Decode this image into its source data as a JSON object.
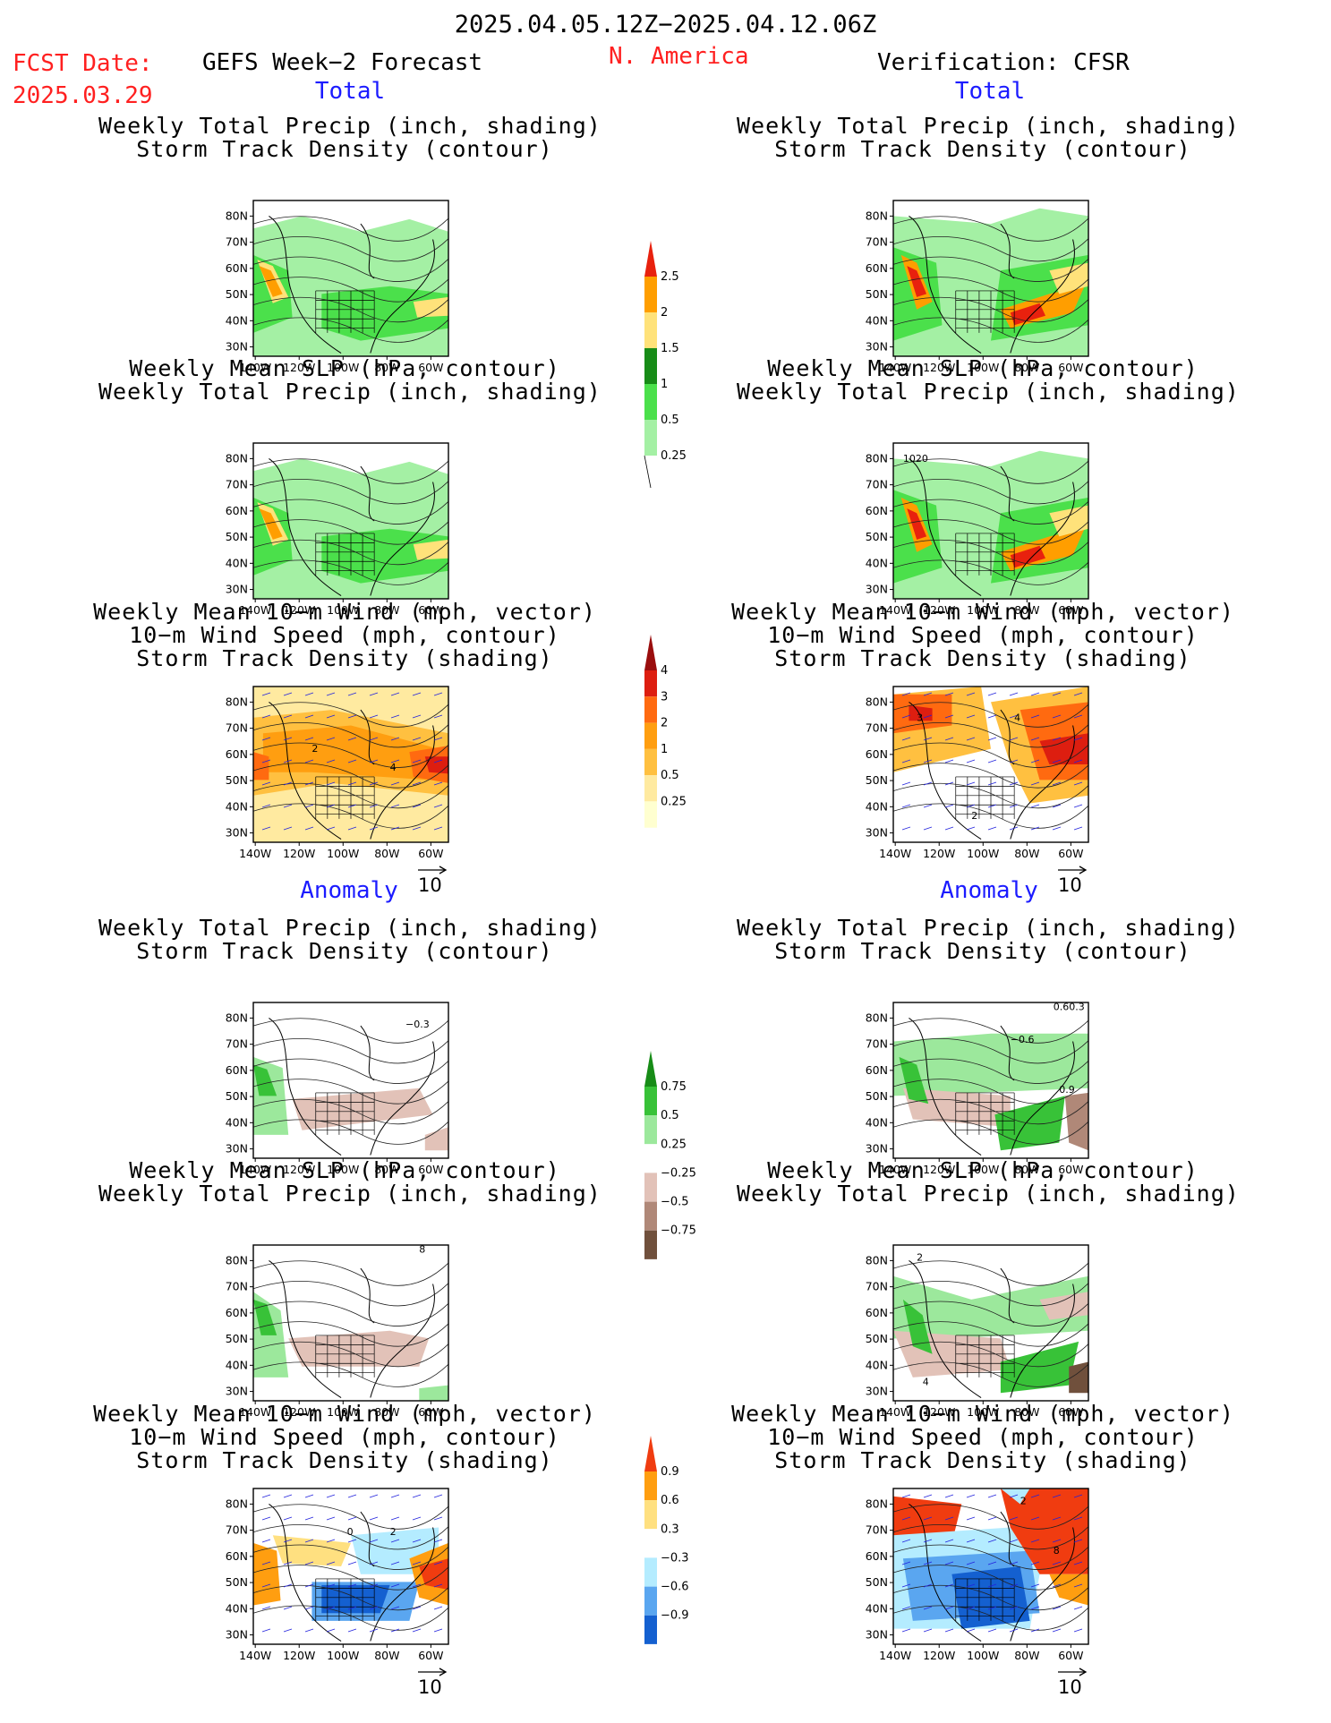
{
  "header": {
    "period": "2025.04.05.12Z−2025.04.12.06Z",
    "fcst_label": "FCST Date:",
    "fcst_date": "2025.03.29",
    "left_title": "GEFS Week−2 Forecast",
    "region": "N. America",
    "right_title": "Verification: CFSR"
  },
  "sections": {
    "total": "Total",
    "anomaly": "Anomaly"
  },
  "titles": {
    "precip_track": [
      "Weekly Total Precip (inch, shading)",
      "Storm Track Density (contour)"
    ],
    "slp_precip": [
      "Weekly Mean SLP (hPa, contour)",
      "Weekly Total Precip (inch, shading)"
    ],
    "wind_track": [
      "Weekly Mean 10−m Wind (mph, vector)",
      "10−m Wind Speed (mph, contour)",
      "Storm Track Density (shading)"
    ]
  },
  "axes": {
    "lat": [
      "80N",
      "70N",
      "60N",
      "50N",
      "40N",
      "30N"
    ],
    "lon": [
      "140W",
      "120W",
      "100W",
      "80W",
      "60W"
    ]
  },
  "vector_ref": "10",
  "contour_labels": {
    "r2_right": "1020",
    "r3_left_a": "2",
    "r3_left_b": "4",
    "r3_right_a": "3",
    "r3_right_b": "4",
    "r3_right_c": "2",
    "r4_left": "−0.3",
    "r4_right_a": "0.60.3",
    "r4_right_b": "−0.6",
    "r4_right_c": "0.9",
    "r5_left": "8",
    "r5_right_a": "2",
    "r5_right_b": "4",
    "r6_left_a": "0",
    "r6_left_b": "2",
    "r6_right_a": "2",
    "r6_right_b": "8"
  },
  "colorbars": {
    "precip_total": {
      "labels": [
        "2.5",
        "2",
        "1.5",
        "1",
        "0.5",
        "0.25"
      ],
      "colors": [
        "#e8210e",
        "#ff9e00",
        "#ffe27a",
        "#178c17",
        "#4be04b",
        "#a4f0a4"
      ]
    },
    "track_total": {
      "labels": [
        "4",
        "3",
        "2",
        "1",
        "0.5",
        "0.25"
      ],
      "colors": [
        "#9a0d0d",
        "#dd1e10",
        "#ff6a10",
        "#ff9e10",
        "#ffc040",
        "#ffeaa0",
        "#ffffd0"
      ]
    },
    "precip_anom": {
      "labels": [
        "0.75",
        "0.5",
        "0.25",
        "−0.25",
        "−0.5",
        "−0.75"
      ],
      "colors": [
        "#178c17",
        "#38c238",
        "#9ce89c",
        "#ffffff",
        "#e2c2b8",
        "#b08878",
        "#70503c"
      ]
    },
    "track_anom": {
      "labels": [
        "0.9",
        "0.6",
        "0.3",
        "−0.3",
        "−0.6",
        "−0.9"
      ],
      "colors": [
        "#f03c10",
        "#ff9e10",
        "#ffe080",
        "#ffffff",
        "#b4ecff",
        "#5aa6f0",
        "#1460d0"
      ]
    }
  }
}
